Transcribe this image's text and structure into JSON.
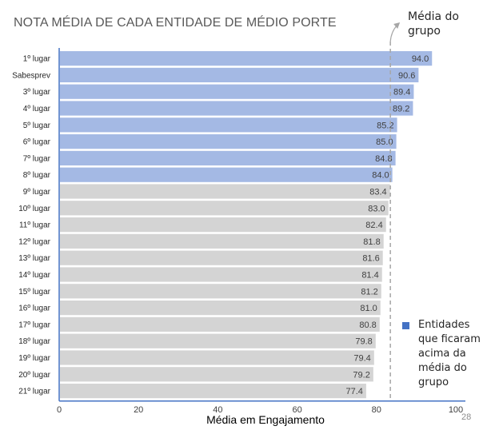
{
  "chart_data": {
    "type": "bar",
    "orientation": "horizontal",
    "title": "NOTA MÉDIA DE CADA ENTIDADE DE MÉDIO PORTE",
    "xlabel": "Média em Engajamento",
    "ylabel": "",
    "xlim": [
      0,
      100
    ],
    "xticks": [
      0,
      20,
      40,
      60,
      80,
      100
    ],
    "grid": false,
    "categories": [
      "1º lugar",
      "Sabesprev",
      "3º lugar",
      "4º lugar",
      "5º lugar",
      "6º lugar",
      "7º lugar",
      "8º lugar",
      "9º lugar",
      "10º lugar",
      "11º lugar",
      "12º lugar",
      "13º lugar",
      "14º lugar",
      "15º lugar",
      "16º lugar",
      "17º lugar",
      "18º lugar",
      "19º lugar",
      "20º lugar",
      "21º lugar"
    ],
    "values": [
      94.0,
      90.6,
      89.4,
      89.2,
      85.2,
      85.0,
      84.8,
      84.0,
      83.4,
      83.0,
      82.4,
      81.8,
      81.6,
      81.4,
      81.2,
      81.0,
      80.8,
      79.8,
      79.4,
      79.2,
      77.4
    ],
    "value_labels": [
      "94.0",
      "90.6",
      "89.4",
      "89.2",
      "85.2",
      "85.0",
      "84.8",
      "84.0",
      "83.4",
      "83.0",
      "82.4",
      "81.8",
      "81.6",
      "81.4",
      "81.2",
      "81.0",
      "80.8",
      "79.8",
      "79.4",
      "79.2",
      "77.4"
    ],
    "group_average": 83.5,
    "group_average_label": "Média do grupo",
    "above_average_color": "#a4b9e4",
    "below_average_color": "#d4d4d4",
    "legend_color": "#4472c4",
    "legend_placement": "bottom-right",
    "legend_label": "Entidades que ficaram acima da média do grupo"
  },
  "page_number": "28"
}
